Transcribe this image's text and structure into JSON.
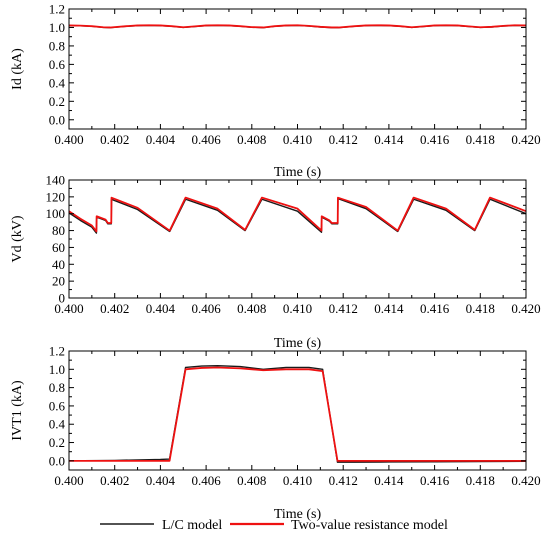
{
  "colors": {
    "lc_model": "#1a1a1a",
    "two_value": "#ee1111"
  },
  "legend": [
    {
      "label": "L/C model",
      "color": "#1a1a1a"
    },
    {
      "label": "Two-value resistance model",
      "color": "#ee1111"
    }
  ],
  "chart_data": [
    {
      "type": "line",
      "title": "",
      "xlabel": "Time (s)",
      "ylabel": "Id (kA)",
      "xlim": [
        0.4,
        0.42
      ],
      "ylim": [
        -0.1,
        1.2
      ],
      "xticks": [
        0.4,
        0.402,
        0.404,
        0.406,
        0.408,
        0.41,
        0.412,
        0.414,
        0.416,
        0.418,
        0.42
      ],
      "xtick_labels": [
        "0.400",
        "0.402",
        "0.404",
        "0.406",
        "0.408",
        "0.410",
        "0.412",
        "0.414",
        "0.416",
        "0.418",
        "0.420"
      ],
      "yticks": [
        0.0,
        0.2,
        0.4,
        0.6,
        0.8,
        1.0,
        1.2
      ],
      "ytick_labels": [
        "0.0",
        "0.2",
        "0.4",
        "0.6",
        "0.8",
        "1.0",
        "1.2"
      ],
      "grid": false,
      "series": [
        {
          "name": "L/C model",
          "color": "#1a1a1a",
          "x": [
            0.4,
            0.4005,
            0.401,
            0.4015,
            0.4018,
            0.4025,
            0.403,
            0.4035,
            0.404,
            0.4045,
            0.405,
            0.4055,
            0.406,
            0.4065,
            0.407,
            0.4075,
            0.408,
            0.4085,
            0.409,
            0.4095,
            0.41,
            0.4105,
            0.411,
            0.4115,
            0.4118,
            0.4125,
            0.413,
            0.4135,
            0.414,
            0.4145,
            0.415,
            0.4155,
            0.416,
            0.4165,
            0.417,
            0.4175,
            0.418,
            0.4185,
            0.419,
            0.4195,
            0.42
          ],
          "y": [
            1.02,
            1.018,
            1.012,
            1.0,
            0.998,
            1.012,
            1.02,
            1.022,
            1.02,
            1.012,
            1.0,
            1.01,
            1.02,
            1.022,
            1.02,
            1.012,
            1.002,
            0.998,
            1.012,
            1.02,
            1.022,
            1.015,
            1.005,
            0.998,
            0.998,
            1.012,
            1.02,
            1.022,
            1.02,
            1.012,
            1.0,
            1.01,
            1.02,
            1.022,
            1.02,
            1.01,
            1.0,
            1.005,
            1.015,
            1.022,
            1.02
          ]
        },
        {
          "name": "Two-value resistance model",
          "color": "#ee1111",
          "x": [
            0.4,
            0.4005,
            0.401,
            0.4015,
            0.4018,
            0.4025,
            0.403,
            0.4035,
            0.404,
            0.4045,
            0.405,
            0.4055,
            0.406,
            0.4065,
            0.407,
            0.4075,
            0.408,
            0.4085,
            0.409,
            0.4095,
            0.41,
            0.4105,
            0.411,
            0.4115,
            0.4118,
            0.4125,
            0.413,
            0.4135,
            0.414,
            0.4145,
            0.415,
            0.4155,
            0.416,
            0.4165,
            0.417,
            0.4175,
            0.418,
            0.4185,
            0.419,
            0.4195,
            0.42
          ],
          "y": [
            1.022,
            1.02,
            1.014,
            1.002,
            1.0,
            1.014,
            1.022,
            1.024,
            1.022,
            1.014,
            1.002,
            1.012,
            1.022,
            1.024,
            1.022,
            1.014,
            1.004,
            1.0,
            1.014,
            1.022,
            1.024,
            1.017,
            1.007,
            1.0,
            1.0,
            1.014,
            1.022,
            1.024,
            1.022,
            1.014,
            1.002,
            1.012,
            1.022,
            1.024,
            1.022,
            1.012,
            1.002,
            1.007,
            1.017,
            1.024,
            1.022
          ]
        }
      ]
    },
    {
      "type": "line",
      "title": "",
      "xlabel": "Time (s)",
      "ylabel": "Vd (kV)",
      "xlim": [
        0.4,
        0.42
      ],
      "ylim": [
        0,
        140
      ],
      "xticks": [
        0.4,
        0.402,
        0.404,
        0.406,
        0.408,
        0.41,
        0.412,
        0.414,
        0.416,
        0.418,
        0.42
      ],
      "xtick_labels": [
        "0.400",
        "0.402",
        "0.404",
        "0.406",
        "0.408",
        "0.410",
        "0.412",
        "0.414",
        "0.416",
        "0.418",
        "0.420"
      ],
      "yticks": [
        0,
        20,
        40,
        60,
        80,
        100,
        120,
        140
      ],
      "ytick_labels": [
        "0",
        "20",
        "40",
        "60",
        "80",
        "100",
        "120",
        "140"
      ],
      "grid": false,
      "series": [
        {
          "name": "L/C model",
          "color": "#1a1a1a",
          "x": [
            0.4,
            0.4005,
            0.401,
            0.4012,
            0.40121,
            0.4016,
            0.4017,
            0.40185,
            0.40186,
            0.403,
            0.4044,
            0.40441,
            0.4051,
            0.40512,
            0.4065,
            0.4077,
            0.40771,
            0.40844,
            0.40846,
            0.41,
            0.41105,
            0.41106,
            0.4114,
            0.4115,
            0.41176,
            0.41177,
            0.413,
            0.41438,
            0.41439,
            0.41508,
            0.4151,
            0.4165,
            0.41775,
            0.41776,
            0.41842,
            0.41844,
            0.42
          ],
          "y": [
            101,
            92,
            84,
            77,
            96,
            92,
            88,
            88,
            117,
            105,
            79,
            79,
            117,
            117,
            104,
            80,
            80,
            117,
            117,
            103,
            78,
            96,
            91,
            88,
            88,
            118,
            106,
            79,
            79,
            117,
            117,
            104,
            80,
            80,
            117,
            117,
            100
          ]
        },
        {
          "name": "Two-value resistance model",
          "color": "#ee1111",
          "x": [
            0.4,
            0.4005,
            0.401,
            0.4012,
            0.40121,
            0.4016,
            0.4017,
            0.40185,
            0.40186,
            0.403,
            0.4044,
            0.40441,
            0.4051,
            0.40512,
            0.4065,
            0.4077,
            0.40771,
            0.40844,
            0.40846,
            0.41,
            0.41105,
            0.41106,
            0.4114,
            0.4115,
            0.41176,
            0.41177,
            0.413,
            0.41438,
            0.41439,
            0.41508,
            0.4151,
            0.4165,
            0.41775,
            0.41776,
            0.41842,
            0.41844,
            0.42
          ],
          "y": [
            103,
            94,
            86,
            79,
            97,
            93,
            89,
            89,
            119,
            107,
            80,
            80,
            119,
            119,
            106,
            81,
            81,
            119,
            119,
            106,
            80,
            97,
            92,
            89,
            89,
            119,
            108,
            80,
            80,
            119,
            119,
            106,
            81,
            81,
            119,
            119,
            103
          ]
        }
      ]
    },
    {
      "type": "line",
      "title": "",
      "xlabel": "Time (s)",
      "ylabel": "IVT1 (kA)",
      "xlim": [
        0.4,
        0.42
      ],
      "ylim": [
        -0.1,
        1.2
      ],
      "xticks": [
        0.4,
        0.402,
        0.404,
        0.406,
        0.408,
        0.41,
        0.412,
        0.414,
        0.416,
        0.418,
        0.42
      ],
      "xtick_labels": [
        "0.400",
        "0.402",
        "0.404",
        "0.406",
        "0.408",
        "0.410",
        "0.412",
        "0.414",
        "0.416",
        "0.418",
        "0.420"
      ],
      "yticks": [
        0.0,
        0.2,
        0.4,
        0.6,
        0.8,
        1.0,
        1.2
      ],
      "ytick_labels": [
        "0.0",
        "0.2",
        "0.4",
        "0.6",
        "0.8",
        "1.0",
        "1.2"
      ],
      "grid": false,
      "series": [
        {
          "name": "L/C model",
          "color": "#1a1a1a",
          "x": [
            0.4,
            0.402,
            0.404,
            0.4044,
            0.4051,
            0.4058,
            0.4065,
            0.4075,
            0.4085,
            0.4095,
            0.4105,
            0.4111,
            0.41175,
            0.4125,
            0.414,
            0.416,
            0.418,
            0.42
          ],
          "y": [
            0.0,
            0.005,
            0.015,
            0.02,
            1.02,
            1.035,
            1.04,
            1.03,
            1.0,
            1.02,
            1.02,
            1.0,
            -0.015,
            -0.015,
            -0.012,
            -0.01,
            -0.008,
            -0.005
          ]
        },
        {
          "name": "Two-value resistance model",
          "color": "#ee1111",
          "x": [
            0.4,
            0.402,
            0.404,
            0.4044,
            0.4051,
            0.4058,
            0.4065,
            0.4075,
            0.4085,
            0.4095,
            0.4105,
            0.4111,
            0.41175,
            0.4125,
            0.414,
            0.416,
            0.418,
            0.42
          ],
          "y": [
            0.0,
            0.0,
            0.0,
            0.0,
            1.0,
            1.015,
            1.02,
            1.01,
            0.99,
            1.0,
            1.0,
            0.98,
            0.0,
            0.0,
            0.0,
            0.0,
            0.0,
            0.0
          ]
        }
      ]
    }
  ]
}
